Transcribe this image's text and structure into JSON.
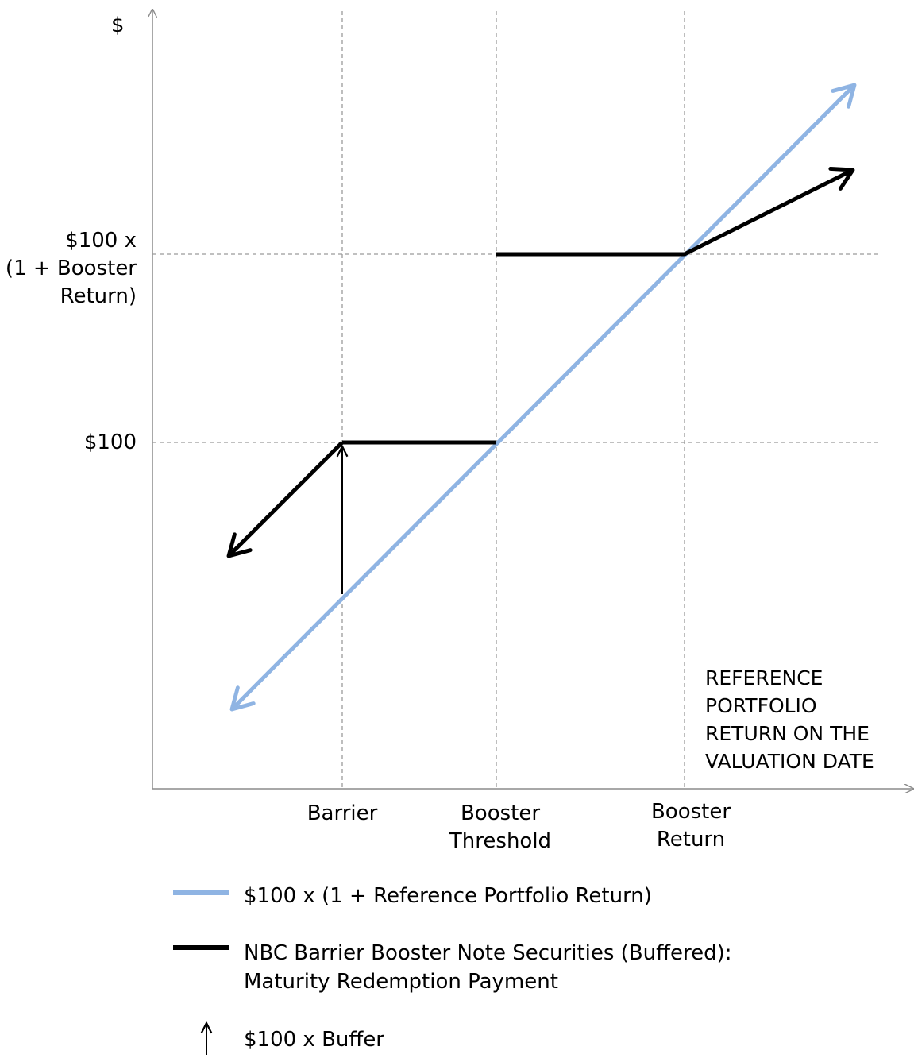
{
  "chart_data": {
    "type": "line",
    "ylabel": "$",
    "xlabel": "REFERENCE\nPORTFOLIO\nRETURN ON THE\nVALUATION  DATE",
    "x_ticks": [
      {
        "key": "barrier",
        "label": "Barrier"
      },
      {
        "key": "booster_threshold",
        "label": "Booster\nThreshold"
      },
      {
        "key": "booster_return",
        "label": "Booster\nReturn"
      }
    ],
    "y_ticks": [
      {
        "key": "par",
        "label": "$100"
      },
      {
        "key": "booster",
        "label": "$100 x\n(1 + Booster\nReturn)"
      }
    ],
    "grid": true,
    "colors": {
      "reference": "#8fb4e3",
      "note": "#000000",
      "grid": "#9a9a9a",
      "axis": "#8c8c8c"
    },
    "series": [
      {
        "key": "reference",
        "name": "$100 x (1 + Reference Portfolio Return)",
        "arrows": "both-ends",
        "points": [
          [
            "left-end",
            "below-barrier"
          ],
          [
            "booster_threshold",
            "par"
          ],
          [
            "booster_return",
            "booster"
          ],
          [
            "right-end",
            "above-top"
          ]
        ]
      },
      {
        "key": "note",
        "name": "NBC Barrier Booster Note Securities (Buffered):\nMaturity Redemption Payment",
        "segments": [
          {
            "from": [
              "barrier",
              "par"
            ],
            "to": [
              "left-end",
              "below-barrier"
            ],
            "arrow": "end"
          },
          {
            "from": [
              "barrier",
              "par"
            ],
            "to": [
              "booster_threshold",
              "par"
            ]
          },
          {
            "from": [
              "booster_threshold",
              "booster"
            ],
            "to": [
              "booster_return",
              "booster"
            ]
          },
          {
            "from": [
              "booster_return",
              "booster"
            ],
            "to": [
              "right-end",
              "above-booster"
            ],
            "arrow": "end"
          }
        ]
      },
      {
        "key": "buffer",
        "name": "$100 x Buffer",
        "marker": "up-arrow",
        "at": "barrier"
      }
    ]
  },
  "legend": [
    {
      "key": "reference",
      "label": "$100 x (1 + Reference Portfolio Return)"
    },
    {
      "key": "note",
      "label": "NBC Barrier Booster Note Securities (Buffered):\nMaturity Redemption Payment"
    },
    {
      "key": "buffer",
      "label": "$100 x Buffer"
    }
  ]
}
